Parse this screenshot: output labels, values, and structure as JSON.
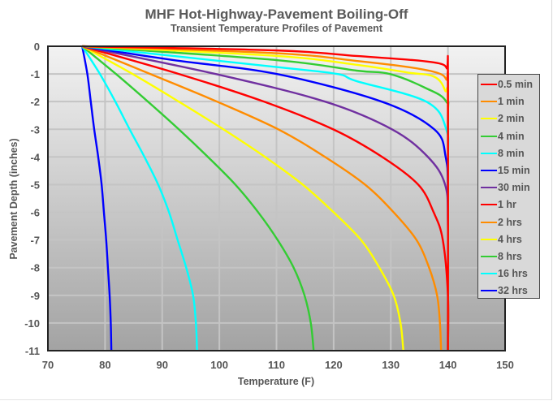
{
  "chart_data": {
    "type": "line",
    "title": "MHF Hot-Highway-Pavement Boiling-Off",
    "subtitle": "Transient Temperature Profiles of Pavement",
    "xlabel": "Temperature (F)",
    "ylabel": "Pavement Depth (inches)",
    "xlim": [
      70,
      150
    ],
    "ylim": [
      -11,
      0
    ],
    "xticks": [
      70,
      80,
      90,
      100,
      110,
      120,
      130,
      140,
      150
    ],
    "yticks": [
      0,
      -1,
      -2,
      -3,
      -4,
      -5,
      -6,
      -7,
      -8,
      -9,
      -10,
      -11
    ],
    "grid": true,
    "legend_position": "right",
    "series": [
      {
        "name": "0.5 min",
        "color": "#ff0000",
        "points": [
          [
            76,
            0
          ],
          [
            110,
            -0.15
          ],
          [
            124,
            -0.35
          ],
          [
            134,
            -0.5
          ],
          [
            138.5,
            -0.62
          ],
          [
            139.8,
            -0.8
          ],
          [
            140,
            -1.2
          ],
          [
            140,
            -11
          ]
        ]
      },
      {
        "name": "1 min",
        "color": "#ff8c00",
        "points": [
          [
            76,
            0
          ],
          [
            110,
            -0.25
          ],
          [
            124,
            -0.53
          ],
          [
            133,
            -0.75
          ],
          [
            138,
            -0.95
          ],
          [
            139.7,
            -1.2
          ],
          [
            140,
            -1.8
          ],
          [
            140,
            -11
          ]
        ]
      },
      {
        "name": "2 min",
        "color": "#ffff00",
        "points": [
          [
            76,
            0
          ],
          [
            110,
            -0.35
          ],
          [
            124,
            -0.67
          ],
          [
            133,
            -0.95
          ],
          [
            137.6,
            -1.1
          ],
          [
            139.5,
            -1.6
          ],
          [
            140,
            -2.4
          ],
          [
            140,
            -11
          ]
        ]
      },
      {
        "name": "4 min",
        "color": "#33cc33",
        "points": [
          [
            76,
            0
          ],
          [
            110,
            -0.5
          ],
          [
            124,
            -0.88
          ],
          [
            129.8,
            -1.0
          ],
          [
            136,
            -1.5
          ],
          [
            139.7,
            -2.0
          ],
          [
            140,
            -3.0
          ],
          [
            140,
            -11
          ]
        ]
      },
      {
        "name": "8 min",
        "color": "#00ffff",
        "points": [
          [
            76,
            0
          ],
          [
            110,
            -0.75
          ],
          [
            120.6,
            -1.0
          ],
          [
            124,
            -1.26
          ],
          [
            136.2,
            -2.0
          ],
          [
            139.7,
            -3.0
          ],
          [
            140,
            -4.5
          ],
          [
            140,
            -11
          ]
        ]
      },
      {
        "name": "15 min",
        "color": "#0000ff",
        "points": [
          [
            76,
            0
          ],
          [
            92,
            -0.5
          ],
          [
            110,
            -1.0
          ],
          [
            128.4,
            -2.0
          ],
          [
            137.6,
            -3.0
          ],
          [
            139.6,
            -4.0
          ],
          [
            140,
            -5.5
          ],
          [
            140,
            -11
          ]
        ]
      },
      {
        "name": "30 min",
        "color": "#7030a0",
        "points": [
          [
            76,
            0
          ],
          [
            99.3,
            -1.0
          ],
          [
            118.5,
            -2.0
          ],
          [
            130.2,
            -3.0
          ],
          [
            136.5,
            -4.0
          ],
          [
            139.5,
            -5.0
          ],
          [
            140,
            -6.5
          ],
          [
            140,
            -11
          ]
        ]
      },
      {
        "name": "1 hr",
        "color": "#ff0000",
        "points": [
          [
            76,
            0
          ],
          [
            92.9,
            -1.0
          ],
          [
            107.8,
            -2.0
          ],
          [
            119.9,
            -3.0
          ],
          [
            128.5,
            -4.0
          ],
          [
            134.8,
            -5.0
          ],
          [
            137.5,
            -6.0
          ],
          [
            139.1,
            -7.0
          ],
          [
            140,
            -9.0
          ],
          [
            140,
            -11
          ]
        ]
      },
      {
        "name": "2 hrs",
        "color": "#ff8c00",
        "points": [
          [
            76,
            0
          ],
          [
            87.9,
            -1.0
          ],
          [
            99.6,
            -2.0
          ],
          [
            110.3,
            -3.0
          ],
          [
            118.5,
            -4.0
          ],
          [
            125.5,
            -5.0
          ],
          [
            130.5,
            -6.0
          ],
          [
            134.5,
            -7.0
          ],
          [
            136.7,
            -8.0
          ],
          [
            138.1,
            -9.0
          ],
          [
            138.6,
            -10.0
          ],
          [
            138.8,
            -11.0
          ]
        ]
      },
      {
        "name": "4 hrs",
        "color": "#ffff00",
        "points": [
          [
            76,
            0
          ],
          [
            84.8,
            -1.0
          ],
          [
            92.9,
            -2.0
          ],
          [
            100.7,
            -3.0
          ],
          [
            108,
            -4.0
          ],
          [
            114.6,
            -5.0
          ],
          [
            120,
            -6.0
          ],
          [
            124.8,
            -7.0
          ],
          [
            128,
            -8.0
          ],
          [
            130.5,
            -9.0
          ],
          [
            131.7,
            -10.0
          ],
          [
            132.2,
            -11.0
          ]
        ]
      },
      {
        "name": "8 hrs",
        "color": "#33cc33",
        "points": [
          [
            76,
            0
          ],
          [
            81.9,
            -1.0
          ],
          [
            87.5,
            -2.0
          ],
          [
            92.9,
            -3.0
          ],
          [
            98,
            -4.0
          ],
          [
            102.8,
            -5.0
          ],
          [
            106.8,
            -6.0
          ],
          [
            110.2,
            -7.0
          ],
          [
            113,
            -8.0
          ],
          [
            114.9,
            -9.0
          ],
          [
            116,
            -10.0
          ],
          [
            116.5,
            -11.0
          ]
        ]
      },
      {
        "name": "16 hrs",
        "color": "#00ffff",
        "points": [
          [
            76,
            0
          ],
          [
            79.1,
            -1.0
          ],
          [
            81.8,
            -2.0
          ],
          [
            84.3,
            -3.0
          ],
          [
            86.9,
            -4.0
          ],
          [
            89.3,
            -5.0
          ],
          [
            91.2,
            -6.0
          ],
          [
            92.7,
            -7.0
          ],
          [
            94.2,
            -8.0
          ],
          [
            95.4,
            -9.0
          ],
          [
            95.9,
            -10.0
          ],
          [
            96.1,
            -11.0
          ]
        ]
      },
      {
        "name": "32 hrs",
        "color": "#0000ff",
        "points": [
          [
            76,
            0
          ],
          [
            76.9,
            -1.0
          ],
          [
            77.5,
            -2.0
          ],
          [
            78.1,
            -3.0
          ],
          [
            78.8,
            -4.0
          ],
          [
            79.4,
            -5.0
          ],
          [
            79.8,
            -6.0
          ],
          [
            80.2,
            -7.0
          ],
          [
            80.5,
            -8.0
          ],
          [
            80.8,
            -9.0
          ],
          [
            81,
            -10.0
          ],
          [
            81.1,
            -11.0
          ]
        ]
      }
    ]
  },
  "labels": {
    "title": "MHF Hot-Highway-Pavement Boiling-Off",
    "subtitle": "Transient Temperature Profiles of Pavement",
    "xlabel": "Temperature (F)",
    "ylabel": "Pavement Depth (inches)"
  }
}
